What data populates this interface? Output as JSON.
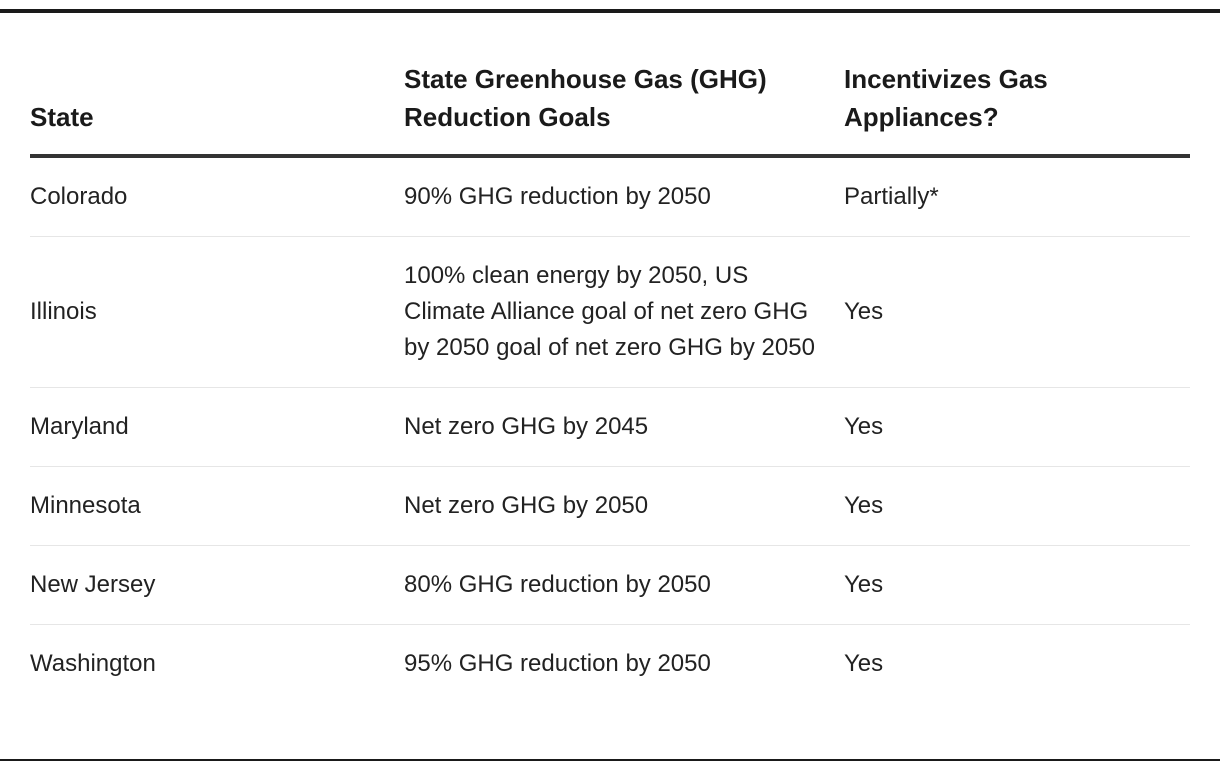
{
  "table": {
    "headers": [
      "State",
      "State Greenhouse Gas (GHG) Reduction Goals",
      "Incentivizes Gas Appliances?"
    ],
    "rows": [
      {
        "state": "Colorado",
        "goal": "90% GHG reduction by 2050",
        "incentivizes": "Partially*"
      },
      {
        "state": "Illinois",
        "goal": "100% clean energy by 2050, US Climate Alliance goal of net zero GHG by 2050 goal of net zero GHG by 2050",
        "incentivizes": "Yes"
      },
      {
        "state": "Maryland",
        "goal": "Net zero GHG by 2045",
        "incentivizes": "Yes"
      },
      {
        "state": "Minnesota",
        "goal": "Net zero GHG by 2050",
        "incentivizes": "Yes"
      },
      {
        "state": "New Jersey",
        "goal": "80% GHG reduction by 2050",
        "incentivizes": "Yes"
      },
      {
        "state": "Washington",
        "goal": "95% GHG reduction by 2050",
        "incentivizes": "Yes"
      }
    ]
  }
}
